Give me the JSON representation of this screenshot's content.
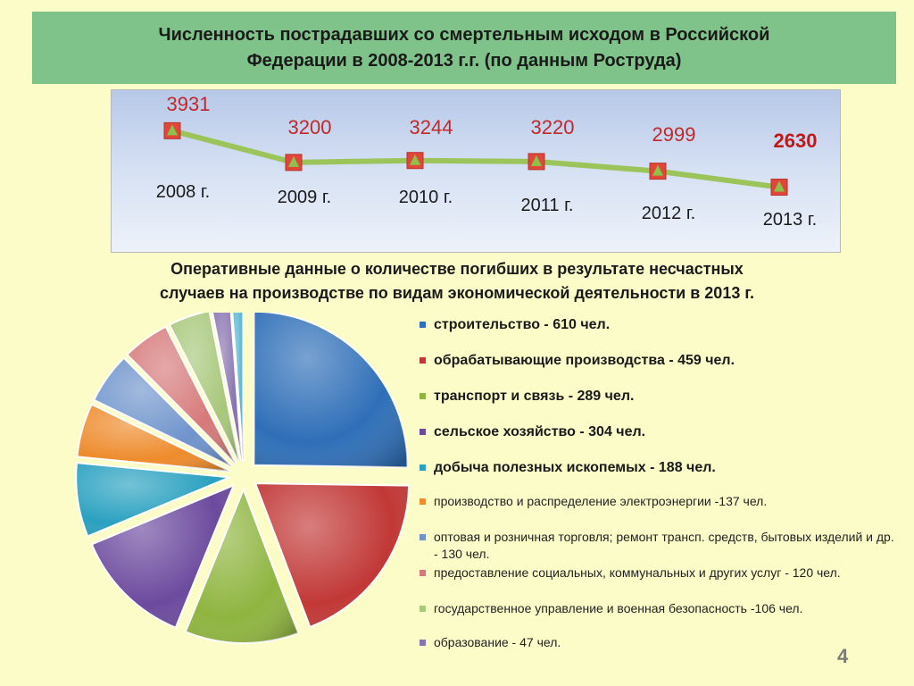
{
  "title": {
    "line1": "Численность пострадавших со смертельным исходом в Российской",
    "line2": "Федерации в 2008-2013 г.г. (по данным Роструда)"
  },
  "subtitle": {
    "line1": "Оперативные данные о количестве погибших в результате несчастных",
    "line2": "случаев на производстве по видам экономической деятельности в 2013 г."
  },
  "page_number": "4",
  "colors": {
    "background": "#fcfcc9",
    "title_bar": "#7fc38a",
    "line": "#9bc55a",
    "marker": "#e0473a",
    "value_text": "#c0282a",
    "value_text_bold": "#c01818"
  },
  "chart_data": [
    {
      "type": "line",
      "title": "",
      "x": [
        "2008 г.",
        "2009 г.",
        "2010 г.",
        "2011 г.",
        "2012 г.",
        "2013 г."
      ],
      "series": [
        {
          "values": [
            3931,
            3200,
            3244,
            3220,
            2999,
            2630
          ],
          "value_labels": [
            "3931",
            "3200",
            "3244",
            "3220",
            "2999",
            "2630"
          ],
          "bold_index": 5
        }
      ],
      "grid": false,
      "legend": "none"
    },
    {
      "type": "pie",
      "title": "",
      "slices": [
        {
          "label": "строительство - 610 чел.",
          "value": 610,
          "color": "#2f6fb8",
          "bold": true
        },
        {
          "label": "обрабатывающие производства - 459 чел.",
          "value": 459,
          "color": "#c13836",
          "bold": true
        },
        {
          "label": "транспорт и связь - 289 чел.",
          "value": 289,
          "color": "#8fb540",
          "bold": true
        },
        {
          "label": "сельское хозяйство - 304 чел.",
          "value": 304,
          "color": "#6c4a9e",
          "bold": true
        },
        {
          "label": "добыча полезных ископемых - 188 чел.",
          "value": 188,
          "color": "#2aa1c0",
          "bold": true
        },
        {
          "label": "производство и распределение электроэнергии -137 чел.",
          "value": 137,
          "color": "#ee8b2c",
          "bold": false
        },
        {
          "label": "оптовая и розничная торговля; ремонт трансп. средств, бытовых изделий и др. - 130 чел.",
          "value": 130,
          "color": "#6f94cc",
          "bold": false
        },
        {
          "label": "предоставление социальных, коммунальных и других услуг - 120 чел.",
          "value": 120,
          "color": "#d6797a",
          "bold": false
        },
        {
          "label": "государственное управление и военная безопасность -106 чел.",
          "value": 106,
          "color": "#a7c77a",
          "bold": false
        },
        {
          "label": "образование - 47 чел.",
          "value": 47,
          "color": "#8872b0",
          "bold": false
        },
        {
          "value": 28,
          "color": "#5bb7d2"
        }
      ],
      "legend": "right"
    }
  ]
}
